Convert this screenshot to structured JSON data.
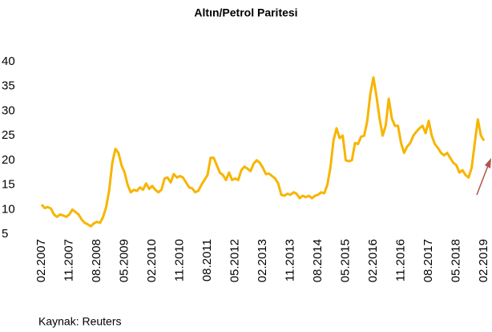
{
  "chart_data": {
    "type": "line",
    "title": "Altın/Petrol Paritesi",
    "source": "Kaynak: Reuters",
    "categories": [
      "02.2007",
      null,
      null,
      null,
      null,
      null,
      null,
      null,
      null,
      "11.2007",
      null,
      null,
      null,
      null,
      null,
      null,
      null,
      null,
      "08.2008",
      null,
      null,
      null,
      null,
      null,
      null,
      null,
      null,
      "05.2009",
      null,
      null,
      null,
      null,
      null,
      null,
      null,
      null,
      "02.2010",
      null,
      null,
      null,
      null,
      null,
      null,
      null,
      null,
      "11.2010",
      null,
      null,
      null,
      null,
      null,
      null,
      null,
      null,
      "08.2011",
      null,
      null,
      null,
      null,
      null,
      null,
      null,
      null,
      "05.2012",
      null,
      null,
      null,
      null,
      null,
      null,
      null,
      null,
      "02.2013",
      null,
      null,
      null,
      null,
      null,
      null,
      null,
      null,
      "11.2013",
      null,
      null,
      null,
      null,
      null,
      null,
      null,
      null,
      "08.2014",
      null,
      null,
      null,
      null,
      null,
      null,
      null,
      null,
      "05.2015",
      null,
      null,
      null,
      null,
      null,
      null,
      null,
      null,
      "02.2016",
      null,
      null,
      null,
      null,
      null,
      null,
      null,
      null,
      "11.2016",
      null,
      null,
      null,
      null,
      null,
      null,
      null,
      null,
      "08.2017",
      null,
      null,
      null,
      null,
      null,
      null,
      null,
      null,
      "05.2018",
      null,
      null,
      null,
      null,
      null,
      null,
      null,
      null,
      "02.2019"
    ],
    "values": [
      11,
      10.3,
      10.5,
      10.2,
      9,
      8.5,
      9,
      8.8,
      8.5,
      9,
      10,
      9.5,
      9,
      8,
      7.3,
      7,
      6.6,
      7.2,
      7.5,
      7.3,
      8.5,
      10.5,
      14,
      19.5,
      22.3,
      21.5,
      19,
      17.5,
      15,
      13.5,
      14,
      13.8,
      14.5,
      14,
      15.3,
      14.2,
      14.8,
      14,
      13.5,
      14,
      16.3,
      16.5,
      15.5,
      17.2,
      16.5,
      16.8,
      16.5,
      15.5,
      14.5,
      14.3,
      13.5,
      13.8,
      15,
      16,
      17,
      20.5,
      20.5,
      19,
      17.5,
      17,
      16,
      17.5,
      16,
      16.3,
      16,
      18,
      18.7,
      18.3,
      17.8,
      19.3,
      20,
      19.5,
      18.5,
      17.2,
      17.3,
      16.8,
      16.3,
      15.3,
      13,
      12.8,
      13.2,
      13,
      13.5,
      13.2,
      12.3,
      12.8,
      12.5,
      12.8,
      12.3,
      12.8,
      13,
      13.5,
      13.3,
      15,
      18.5,
      24,
      26.5,
      24.5,
      25,
      20,
      19.8,
      20,
      23.5,
      23.3,
      24.8,
      25,
      28,
      33.5,
      36.8,
      33,
      28.5,
      25,
      27,
      32.5,
      28.5,
      27,
      27,
      23.5,
      21.5,
      22.8,
      23.5,
      25,
      25.8,
      26.5,
      27,
      25.5,
      28,
      25,
      23.3,
      22.5,
      21.5,
      21,
      21.5,
      20.5,
      19.5,
      19,
      17.5,
      18,
      17,
      16.5,
      18.5,
      23.5,
      28.3,
      25,
      24
    ],
    "color": "#f7b500",
    "ylim": [
      5,
      40
    ],
    "yticks": [
      5,
      10,
      15,
      20,
      25,
      30,
      35,
      40
    ]
  }
}
